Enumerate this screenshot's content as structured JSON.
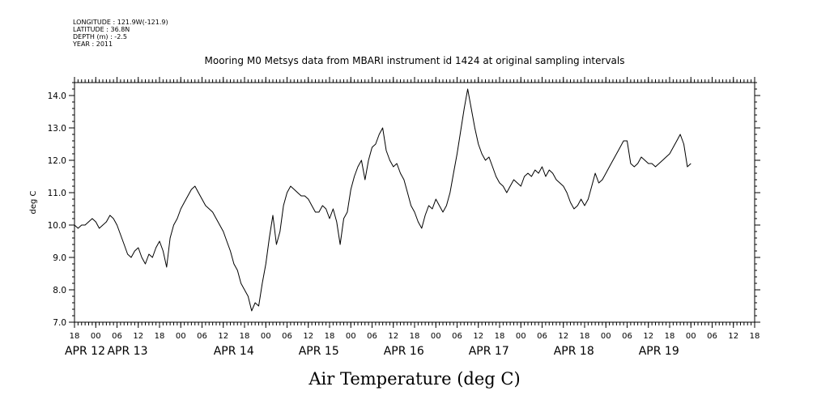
{
  "meta": {
    "longitude": "LONGITUDE : 121.9W(-121.9)",
    "latitude": "LATITUDE : 36.8N",
    "depth": "DEPTH (m) : -2.5",
    "year": "YEAR : 2011"
  },
  "chart_data": {
    "type": "line",
    "title": "Mooring M0 Metsys data from MBARI instrument id 1424 at original sampling intervals",
    "xlabel": "Air Temperature (deg C)",
    "ylabel": "deg C",
    "ylim": [
      7.0,
      14.4
    ],
    "yticks": [
      7.0,
      8.0,
      9.0,
      10.0,
      11.0,
      12.0,
      13.0,
      14.0
    ],
    "ytick_labels": [
      "7.0",
      "8.0",
      "9.0",
      "10.0",
      "11.0",
      "12.0",
      "13.0",
      "14.0"
    ],
    "x_unit": "hours since APR 12 00:00",
    "xlim": [
      18,
      210
    ],
    "hour_ticks": [
      18,
      24,
      30,
      36,
      42,
      48,
      54,
      60,
      66,
      72,
      78,
      84,
      90,
      96,
      102,
      108,
      114,
      120,
      126,
      132,
      138,
      144,
      150,
      156,
      162,
      168,
      174,
      180,
      186,
      192,
      198,
      204,
      210
    ],
    "hour_tick_labels": [
      "18",
      "00",
      "06",
      "12",
      "18",
      "00",
      "06",
      "12",
      "18",
      "00",
      "06",
      "12",
      "18",
      "00",
      "06",
      "12",
      "18",
      "00",
      "06",
      "12",
      "18",
      "00",
      "06",
      "12",
      "18",
      "00",
      "06",
      "12",
      "18",
      "00",
      "06",
      "12",
      "18"
    ],
    "day_labels": [
      {
        "label": "APR 12",
        "hour": 18
      },
      {
        "label": "APR 13",
        "hour": 30
      },
      {
        "label": "APR 14",
        "hour": 60
      },
      {
        "label": "APR 15",
        "hour": 84
      },
      {
        "label": "APR 16",
        "hour": 108
      },
      {
        "label": "APR 17",
        "hour": 132
      },
      {
        "label": "APR 18",
        "hour": 156
      },
      {
        "label": "APR 19",
        "hour": 180
      }
    ],
    "grid": false,
    "series": [
      {
        "color": "#000000",
        "points": [
          [
            18,
            10.0
          ],
          [
            19,
            9.9
          ],
          [
            20,
            10.0
          ],
          [
            21,
            10.0
          ],
          [
            22,
            10.1
          ],
          [
            23,
            10.2
          ],
          [
            24,
            10.1
          ],
          [
            25,
            9.9
          ],
          [
            26,
            10.0
          ],
          [
            27,
            10.1
          ],
          [
            28,
            10.3
          ],
          [
            29,
            10.2
          ],
          [
            30,
            10.0
          ],
          [
            31,
            9.7
          ],
          [
            32,
            9.4
          ],
          [
            33,
            9.1
          ],
          [
            34,
            9.0
          ],
          [
            35,
            9.2
          ],
          [
            36,
            9.3
          ],
          [
            37,
            9.0
          ],
          [
            38,
            8.8
          ],
          [
            39,
            9.1
          ],
          [
            40,
            9.0
          ],
          [
            41,
            9.3
          ],
          [
            42,
            9.5
          ],
          [
            43,
            9.2
          ],
          [
            44,
            8.7
          ],
          [
            45,
            9.6
          ],
          [
            46,
            10.0
          ],
          [
            47,
            10.2
          ],
          [
            48,
            10.5
          ],
          [
            49,
            10.7
          ],
          [
            50,
            10.9
          ],
          [
            51,
            11.1
          ],
          [
            52,
            11.2
          ],
          [
            53,
            11.0
          ],
          [
            54,
            10.8
          ],
          [
            55,
            10.6
          ],
          [
            56,
            10.5
          ],
          [
            57,
            10.4
          ],
          [
            58,
            10.2
          ],
          [
            59,
            10.0
          ],
          [
            60,
            9.8
          ],
          [
            61,
            9.5
          ],
          [
            62,
            9.2
          ],
          [
            63,
            8.8
          ],
          [
            64,
            8.6
          ],
          [
            65,
            8.2
          ],
          [
            66,
            8.0
          ],
          [
            67,
            7.8
          ],
          [
            68,
            7.35
          ],
          [
            69,
            7.6
          ],
          [
            70,
            7.5
          ],
          [
            71,
            8.2
          ],
          [
            72,
            8.8
          ],
          [
            73,
            9.6
          ],
          [
            74,
            10.3
          ],
          [
            75,
            9.4
          ],
          [
            76,
            9.8
          ],
          [
            77,
            10.6
          ],
          [
            78,
            11.0
          ],
          [
            79,
            11.2
          ],
          [
            80,
            11.1
          ],
          [
            81,
            11.0
          ],
          [
            82,
            10.9
          ],
          [
            83,
            10.9
          ],
          [
            84,
            10.8
          ],
          [
            85,
            10.6
          ],
          [
            86,
            10.4
          ],
          [
            87,
            10.4
          ],
          [
            88,
            10.6
          ],
          [
            89,
            10.5
          ],
          [
            90,
            10.2
          ],
          [
            91,
            10.5
          ],
          [
            92,
            10.1
          ],
          [
            93,
            9.4
          ],
          [
            94,
            10.2
          ],
          [
            95,
            10.4
          ],
          [
            96,
            11.1
          ],
          [
            97,
            11.5
          ],
          [
            98,
            11.8
          ],
          [
            99,
            12.0
          ],
          [
            100,
            11.4
          ],
          [
            101,
            12.0
          ],
          [
            102,
            12.4
          ],
          [
            103,
            12.5
          ],
          [
            104,
            12.8
          ],
          [
            105,
            13.0
          ],
          [
            106,
            12.3
          ],
          [
            107,
            12.0
          ],
          [
            108,
            11.8
          ],
          [
            109,
            11.9
          ],
          [
            110,
            11.6
          ],
          [
            111,
            11.4
          ],
          [
            112,
            11.0
          ],
          [
            113,
            10.6
          ],
          [
            114,
            10.4
          ],
          [
            115,
            10.1
          ],
          [
            116,
            9.9
          ],
          [
            117,
            10.3
          ],
          [
            118,
            10.6
          ],
          [
            119,
            10.5
          ],
          [
            120,
            10.8
          ],
          [
            121,
            10.6
          ],
          [
            122,
            10.4
          ],
          [
            123,
            10.6
          ],
          [
            124,
            11.0
          ],
          [
            125,
            11.6
          ],
          [
            126,
            12.2
          ],
          [
            127,
            12.9
          ],
          [
            128,
            13.6
          ],
          [
            129,
            14.2
          ],
          [
            130,
            13.6
          ],
          [
            131,
            13.0
          ],
          [
            132,
            12.5
          ],
          [
            133,
            12.2
          ],
          [
            134,
            12.0
          ],
          [
            135,
            12.1
          ],
          [
            136,
            11.8
          ],
          [
            137,
            11.5
          ],
          [
            138,
            11.3
          ],
          [
            139,
            11.2
          ],
          [
            140,
            11.0
          ],
          [
            141,
            11.2
          ],
          [
            142,
            11.4
          ],
          [
            143,
            11.3
          ],
          [
            144,
            11.2
          ],
          [
            145,
            11.5
          ],
          [
            146,
            11.6
          ],
          [
            147,
            11.5
          ],
          [
            148,
            11.7
          ],
          [
            149,
            11.6
          ],
          [
            150,
            11.8
          ],
          [
            151,
            11.5
          ],
          [
            152,
            11.7
          ],
          [
            153,
            11.6
          ],
          [
            154,
            11.4
          ],
          [
            155,
            11.3
          ],
          [
            156,
            11.2
          ],
          [
            157,
            11.0
          ],
          [
            158,
            10.7
          ],
          [
            159,
            10.5
          ],
          [
            160,
            10.6
          ],
          [
            161,
            10.8
          ],
          [
            162,
            10.6
          ],
          [
            163,
            10.8
          ],
          [
            164,
            11.2
          ],
          [
            165,
            11.6
          ],
          [
            166,
            11.3
          ],
          [
            167,
            11.4
          ],
          [
            168,
            11.6
          ],
          [
            169,
            11.8
          ],
          [
            170,
            12.0
          ],
          [
            171,
            12.2
          ],
          [
            172,
            12.4
          ],
          [
            173,
            12.6
          ],
          [
            174,
            12.6
          ],
          [
            175,
            11.9
          ],
          [
            176,
            11.8
          ],
          [
            177,
            11.9
          ],
          [
            178,
            12.1
          ],
          [
            179,
            12.0
          ],
          [
            180,
            11.9
          ],
          [
            181,
            11.9
          ],
          [
            182,
            11.8
          ],
          [
            183,
            11.9
          ],
          [
            184,
            12.0
          ],
          [
            185,
            12.1
          ],
          [
            186,
            12.2
          ],
          [
            187,
            12.4
          ],
          [
            188,
            12.6
          ],
          [
            189,
            12.8
          ],
          [
            190,
            12.5
          ],
          [
            191,
            11.8
          ],
          [
            192,
            11.9
          ]
        ]
      }
    ]
  }
}
